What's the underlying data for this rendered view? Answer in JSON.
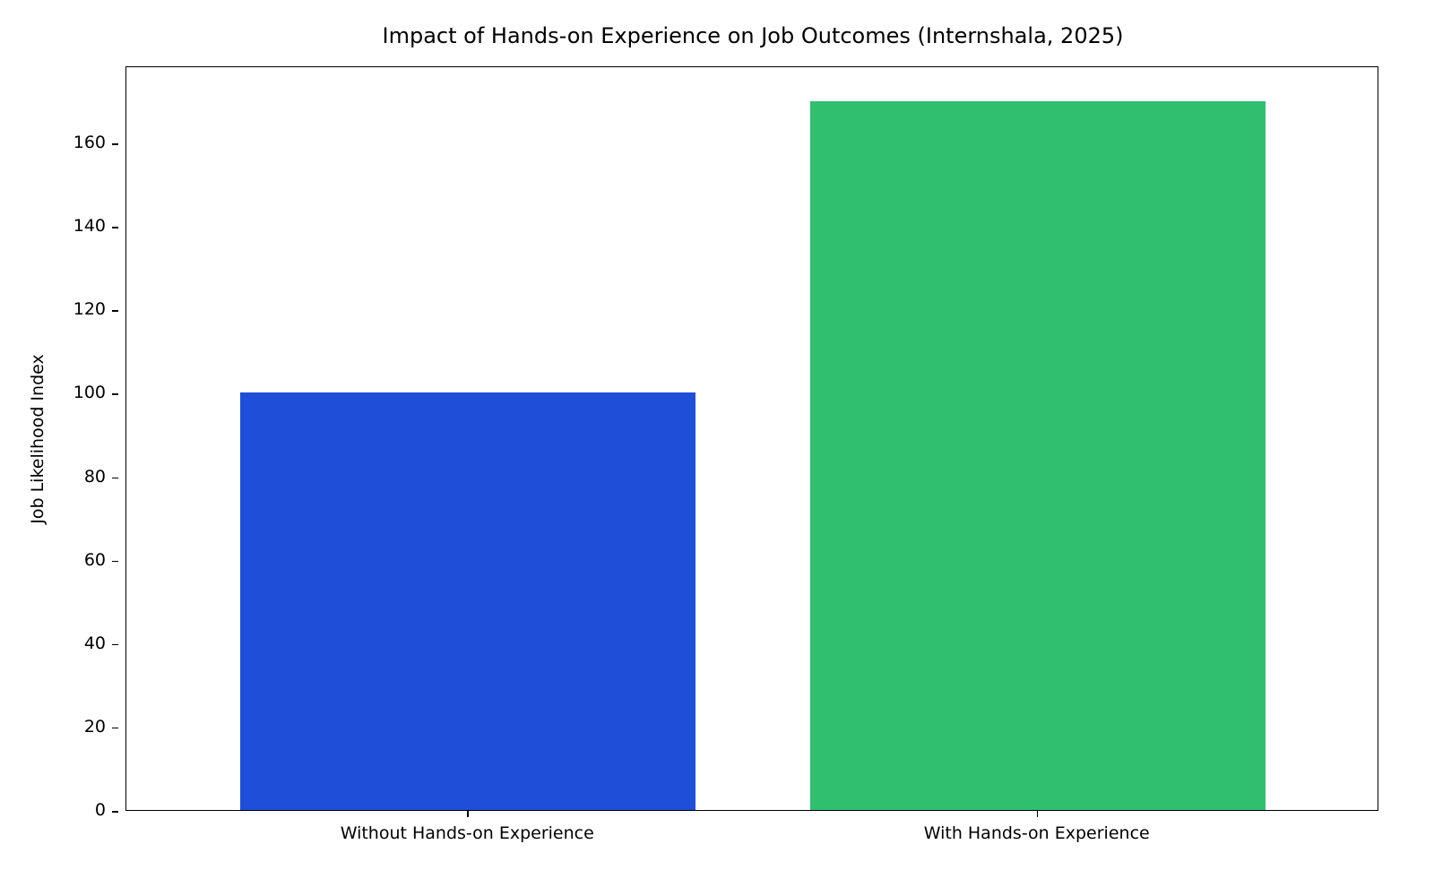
{
  "chart_data": {
    "type": "bar",
    "title": "Impact of Hands-on Experience on Job Outcomes (Internshala, 2025)",
    "xlabel": "",
    "ylabel": "Job Likelihood Index",
    "categories": [
      "Without Hands-on Experience",
      "With Hands-on Experience"
    ],
    "values": [
      100,
      170
    ],
    "colors": [
      "#1f4fd8",
      "#2fbf6f"
    ],
    "ylim": [
      0,
      178.5
    ],
    "yticks": [
      0,
      20,
      40,
      60,
      80,
      100,
      120,
      140,
      160
    ],
    "grid": false,
    "legend": null
  }
}
